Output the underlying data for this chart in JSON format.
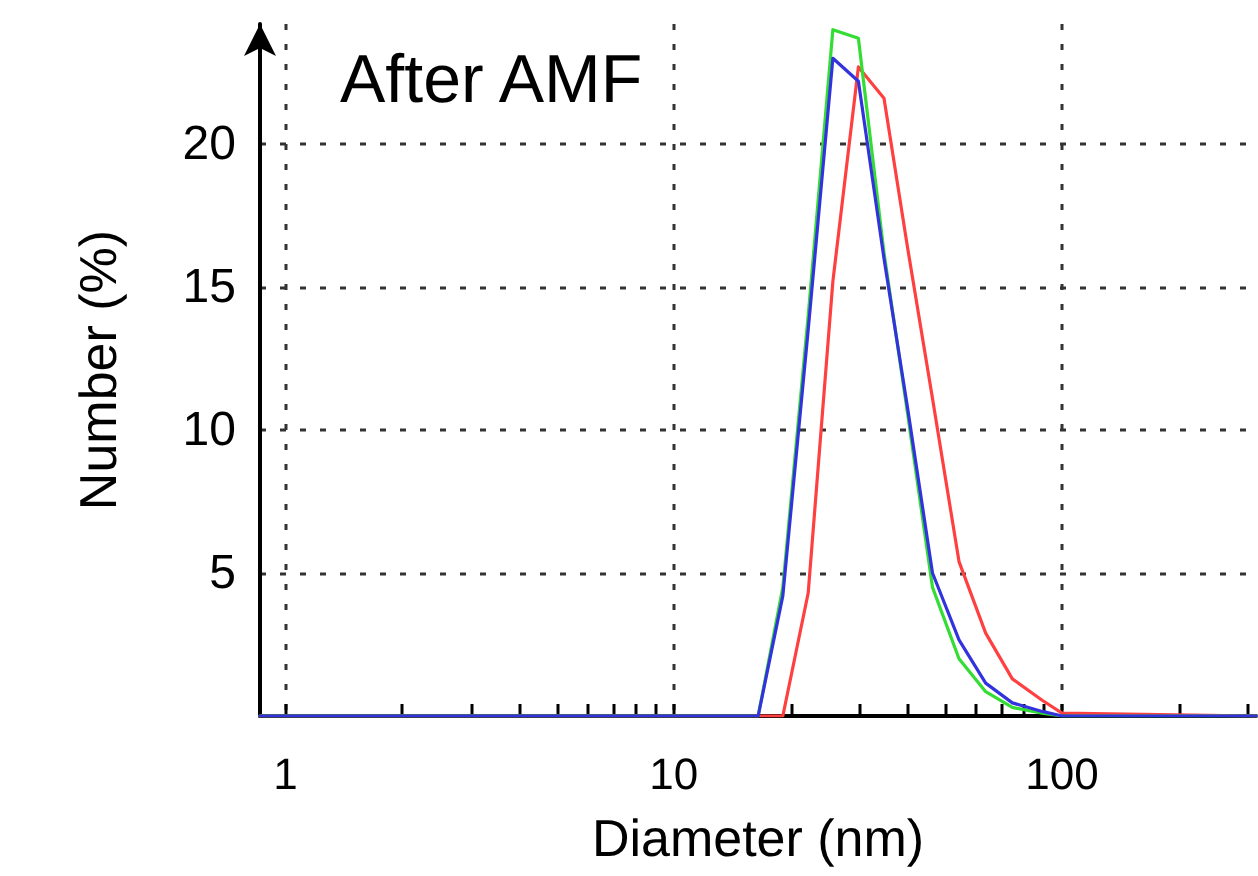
{
  "chart_data": {
    "type": "line",
    "title": "After AMF",
    "xlabel": "Diameter (nm)",
    "ylabel": "Number (%)",
    "x": [
      0.86,
      16.5,
      19.1,
      22.2,
      25.7,
      29.9,
      34.8,
      40.0,
      46.4,
      54.3,
      63.6,
      74.5,
      88.9,
      100,
      316
    ],
    "series": [
      {
        "color": "#ff4040",
        "values": [
          0,
          0,
          0,
          4.3,
          15.2,
          22.7,
          21.6,
          16.4,
          11.1,
          5.4,
          2.9,
          1.3,
          0.55,
          0.1,
          0
        ]
      },
      {
        "color": "#33dd33",
        "values": [
          0,
          0,
          4.5,
          14,
          24,
          23.7,
          16.2,
          10.6,
          4.5,
          2.0,
          0.85,
          0.3,
          0.1,
          0,
          0
        ]
      },
      {
        "color": "#3333dd",
        "values": [
          0,
          0,
          4.2,
          13.5,
          23.0,
          22.2,
          16.0,
          10.8,
          5.0,
          2.66,
          1.15,
          0.46,
          0.16,
          0,
          0
        ]
      }
    ],
    "log": "x",
    "xlim": [
      0.86,
      316
    ],
    "xticks": [
      1,
      {
        "value": 2,
        "label": null
      },
      {
        "value": 3,
        "label": null
      },
      {
        "value": 4,
        "label": null
      },
      {
        "value": 5,
        "label": null
      },
      {
        "value": 6,
        "label": null
      },
      {
        "value": 7,
        "label": null
      },
      {
        "value": 8,
        "label": null
      },
      {
        "value": 9,
        "label": null
      },
      10,
      {
        "value": 20,
        "label": null
      },
      {
        "value": 30,
        "label": null
      },
      {
        "value": 40,
        "label": null
      },
      {
        "value": 50,
        "label": null
      },
      {
        "value": 60,
        "label": null
      },
      {
        "value": 70,
        "label": null
      },
      {
        "value": 80,
        "label": null
      },
      {
        "value": 90,
        "label": null
      },
      100,
      {
        "value": 200,
        "label": null
      },
      {
        "value": 300,
        "label": null
      }
    ],
    "ylim": [
      0,
      24.2
    ],
    "yticks": [
      5,
      10,
      15,
      20
    ],
    "grid": true,
    "marker": "none",
    "line_style": "solid"
  }
}
